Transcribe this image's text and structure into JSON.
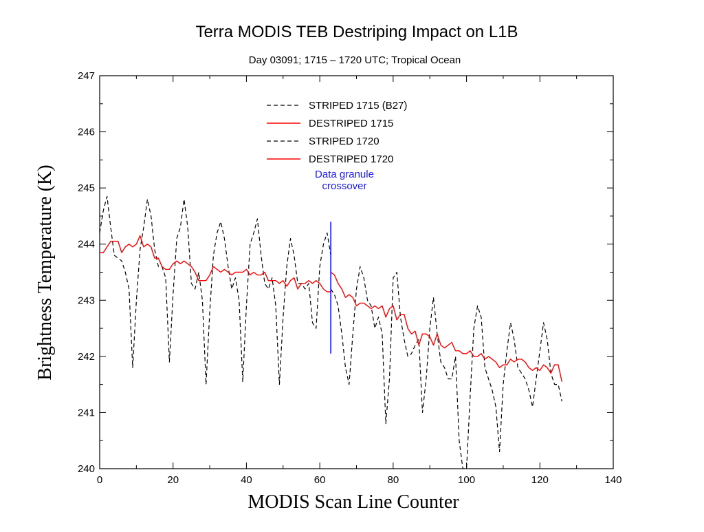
{
  "chart_data": {
    "type": "line",
    "title": "Terra MODIS TEB Destriping Impact on L1B",
    "subtitle": "Day 03091; 1715 – 1720 UTC; Tropical Ocean",
    "xlabel": "MODIS Scan Line Counter",
    "ylabel": "Brightness Temperature (K)",
    "xlim": [
      0,
      140
    ],
    "ylim": [
      240,
      247
    ],
    "xticks": [
      0,
      20,
      40,
      60,
      80,
      100,
      120,
      140
    ],
    "yticks": [
      240,
      241,
      242,
      243,
      244,
      245,
      246,
      247
    ],
    "grid": false,
    "legend_position": "top-center",
    "colors": {
      "striped": "#000000",
      "destriped": "#ff0000",
      "annotation": "#0000ff"
    },
    "series": [
      {
        "name": "STRIPED 1715 (B27)",
        "style": "dashed",
        "color": "#000000",
        "x": [
          0,
          1,
          2,
          3,
          4,
          5,
          6,
          7,
          8,
          9,
          10,
          11,
          12,
          13,
          14,
          15,
          16,
          17,
          18,
          19,
          20,
          21,
          22,
          23,
          24,
          25,
          26,
          27,
          28,
          29,
          30,
          31,
          32,
          33,
          34,
          35,
          36,
          37,
          38,
          39,
          40,
          41,
          42,
          43,
          44,
          45,
          46,
          47,
          48,
          49,
          50,
          51,
          52,
          53,
          54,
          55,
          56,
          57,
          58,
          59,
          60,
          61,
          62,
          63
        ],
        "y": [
          244.2,
          244.6,
          244.85,
          244.3,
          243.8,
          243.75,
          243.7,
          243.5,
          243.2,
          241.8,
          243.0,
          243.9,
          244.3,
          244.8,
          244.5,
          243.9,
          243.6,
          243.6,
          243.4,
          241.9,
          243.1,
          244.1,
          244.3,
          244.8,
          244.3,
          243.3,
          243.2,
          243.5,
          243.0,
          241.5,
          242.8,
          243.8,
          244.2,
          244.4,
          244.1,
          243.6,
          243.2,
          243.4,
          243.0,
          241.55,
          242.9,
          244.0,
          244.2,
          244.45,
          243.8,
          243.3,
          243.2,
          243.4,
          242.9,
          241.5,
          242.7,
          243.6,
          244.1,
          243.8,
          243.3,
          243.3,
          243.2,
          243.3,
          242.6,
          242.5,
          243.6,
          244.0,
          244.2,
          243.8
        ]
      },
      {
        "name": "DESTRIPED 1715",
        "style": "solid",
        "color": "#ff0000",
        "x": [
          0,
          1,
          2,
          3,
          4,
          5,
          6,
          7,
          8,
          9,
          10,
          11,
          12,
          13,
          14,
          15,
          16,
          17,
          18,
          19,
          20,
          21,
          22,
          23,
          24,
          25,
          26,
          27,
          28,
          29,
          30,
          31,
          32,
          33,
          34,
          35,
          36,
          37,
          38,
          39,
          40,
          41,
          42,
          43,
          44,
          45,
          46,
          47,
          48,
          49,
          50,
          51,
          52,
          53,
          54,
          55,
          56,
          57,
          58,
          59,
          60,
          61,
          62,
          63
        ],
        "y": [
          243.85,
          243.85,
          243.95,
          244.05,
          244.05,
          244.05,
          243.85,
          243.95,
          244.0,
          243.95,
          244.0,
          244.15,
          243.95,
          244.0,
          243.95,
          243.75,
          243.75,
          243.6,
          243.55,
          243.55,
          243.65,
          243.7,
          243.65,
          243.7,
          243.65,
          243.6,
          243.5,
          243.35,
          243.35,
          243.35,
          243.45,
          243.6,
          243.55,
          243.5,
          243.55,
          243.5,
          243.45,
          243.5,
          243.5,
          243.5,
          243.55,
          243.45,
          243.5,
          243.45,
          243.45,
          243.5,
          243.35,
          243.35,
          243.35,
          243.3,
          243.35,
          243.25,
          243.35,
          243.4,
          243.2,
          243.3,
          243.3,
          243.35,
          243.3,
          243.35,
          243.3,
          243.2,
          243.15,
          243.15
        ]
      },
      {
        "name": "STRIPED 1720",
        "style": "dashed",
        "color": "#000000",
        "x": [
          63,
          64,
          65,
          66,
          67,
          68,
          69,
          70,
          71,
          72,
          73,
          74,
          75,
          76,
          77,
          78,
          79,
          80,
          81,
          82,
          83,
          84,
          85,
          86,
          87,
          88,
          89,
          90,
          91,
          92,
          93,
          94,
          95,
          96,
          97,
          98,
          99,
          100,
          101,
          102,
          103,
          104,
          105,
          106,
          107,
          108,
          109,
          110,
          111,
          112,
          113,
          114,
          115,
          116,
          117,
          118,
          119,
          120,
          121,
          122,
          123,
          124,
          125,
          126
        ],
        "y": [
          243.2,
          243.1,
          242.9,
          242.4,
          241.8,
          241.5,
          242.4,
          243.2,
          243.6,
          243.4,
          243.0,
          242.9,
          242.5,
          242.7,
          242.4,
          240.8,
          241.6,
          243.4,
          243.5,
          242.7,
          242.3,
          242.0,
          242.05,
          242.2,
          242.3,
          241.0,
          241.6,
          242.5,
          243.05,
          242.4,
          241.9,
          241.8,
          241.6,
          241.6,
          242.0,
          240.5,
          240.0,
          240.0,
          241.3,
          242.5,
          242.9,
          242.7,
          241.8,
          241.6,
          241.4,
          241.1,
          240.3,
          241.5,
          242.1,
          242.6,
          242.3,
          241.8,
          241.7,
          241.6,
          241.4,
          241.1,
          241.6,
          242.1,
          242.6,
          242.3,
          241.7,
          241.5,
          241.5,
          241.2
        ]
      },
      {
        "name": "DESTRIPED 1720",
        "style": "solid",
        "color": "#ff0000",
        "x": [
          63,
          64,
          65,
          66,
          67,
          68,
          69,
          70,
          71,
          72,
          73,
          74,
          75,
          76,
          77,
          78,
          79,
          80,
          81,
          82,
          83,
          84,
          85,
          86,
          87,
          88,
          89,
          90,
          91,
          92,
          93,
          94,
          95,
          96,
          97,
          98,
          99,
          100,
          101,
          102,
          103,
          104,
          105,
          106,
          107,
          108,
          109,
          110,
          111,
          112,
          113,
          114,
          115,
          116,
          117,
          118,
          119,
          120,
          121,
          122,
          123,
          124,
          125,
          126
        ],
        "y": [
          243.5,
          243.45,
          243.3,
          243.2,
          243.05,
          243.1,
          243.05,
          242.9,
          242.95,
          242.95,
          242.9,
          242.85,
          242.9,
          242.85,
          242.9,
          242.7,
          242.85,
          242.9,
          242.65,
          242.75,
          242.75,
          242.5,
          242.4,
          242.45,
          242.2,
          242.4,
          242.4,
          242.35,
          242.2,
          242.4,
          242.2,
          242.15,
          242.2,
          242.25,
          242.1,
          242.1,
          242.05,
          242.05,
          242.1,
          242.0,
          242.0,
          242.05,
          241.95,
          242.0,
          241.95,
          241.9,
          241.8,
          241.85,
          241.85,
          241.95,
          241.9,
          241.95,
          241.95,
          241.9,
          241.8,
          241.75,
          241.8,
          241.75,
          241.85,
          241.8,
          241.7,
          241.85,
          241.85,
          241.55
        ]
      }
    ],
    "annotations": [
      {
        "text": "Data granule\ncrossover",
        "line_x": 63,
        "line_y_range": [
          242.05,
          244.4
        ],
        "color": "#0000ff"
      }
    ]
  }
}
